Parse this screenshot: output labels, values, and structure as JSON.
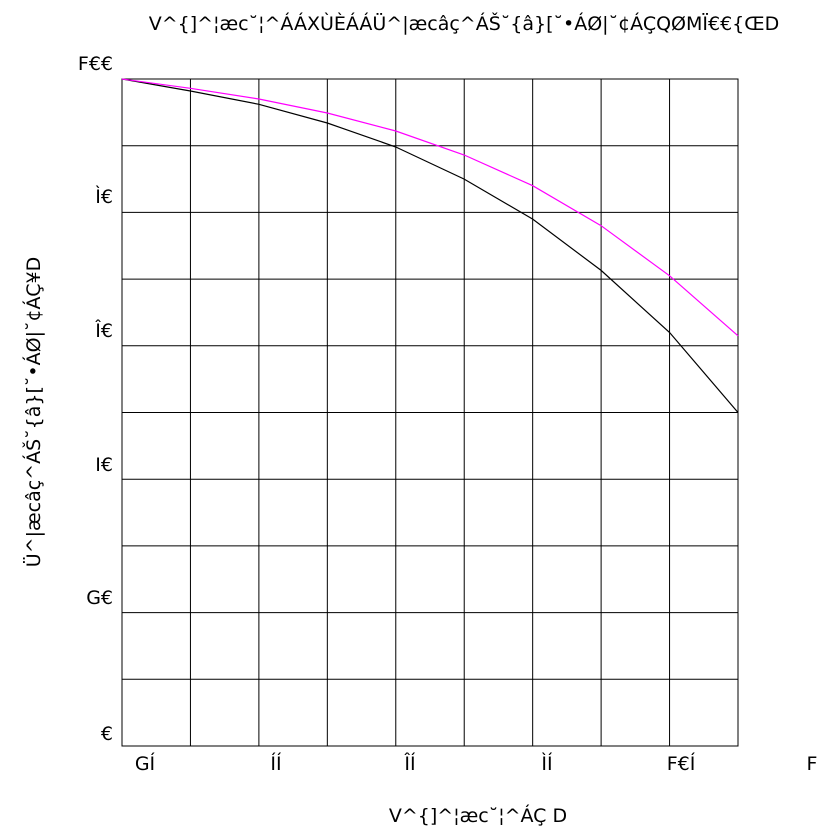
{
  "chart_data": {
    "type": "line",
    "title": "V^{]^¦æc˘¦^ÁÁXÙÈÁÁÜ^|æcâç^ÁŠ˘{â}[˘•ÁØ|˘¢ÁÇQØMÏ€€{ŒD",
    "xlabel": "V^{]^¦æc˘¦^ÁÇ D",
    "ylabel": "Ü^|æcâç^ÁŠ˘{â}[˘•ÁØ|˘¢ÁÇ¥D",
    "x_ticks": [
      "GÍ",
      "ÍÍ",
      "ÎÍ",
      "ÌÍ",
      "F€Í",
      "F"
    ],
    "y_ticks": [
      "€",
      "G€",
      "I€",
      "Î€",
      "Ì€",
      "F€€"
    ],
    "xlim": [
      20,
      110
    ],
    "ylim": [
      0,
      100
    ],
    "grid": true,
    "x": [
      20,
      30,
      40,
      50,
      60,
      70,
      80,
      90,
      100,
      110
    ],
    "series": [
      {
        "color": "#000000",
        "values": [
          100,
          98.2,
          96.2,
          93.4,
          89.8,
          85.0,
          79.0,
          71.3,
          62.0,
          50.0
        ]
      },
      {
        "color": "#ff00ff",
        "values": [
          100,
          98.6,
          97.0,
          94.9,
          92.2,
          88.6,
          84.0,
          78.0,
          70.5,
          61.5
        ]
      }
    ]
  }
}
